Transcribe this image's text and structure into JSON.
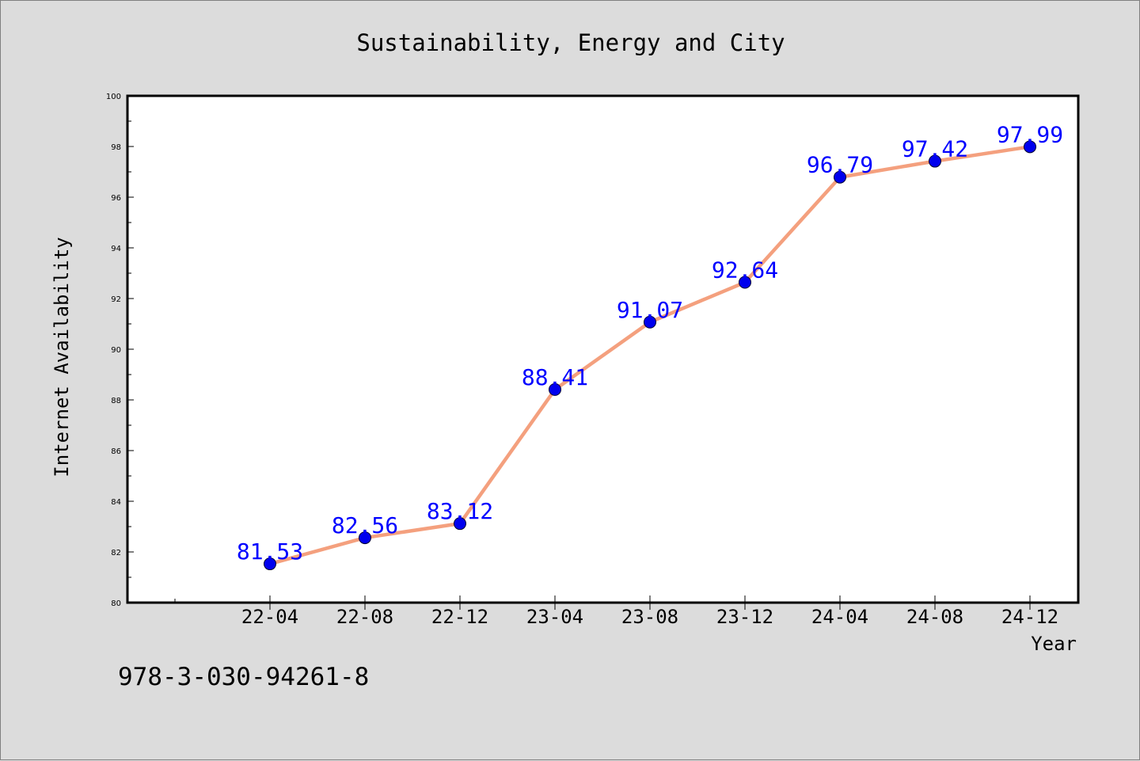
{
  "chart_data": {
    "type": "line",
    "title": "Sustainability, Energy and City",
    "xlabel": "Year",
    "ylabel": "Internet Availability",
    "categories": [
      "22-04",
      "22-08",
      "22-12",
      "23-04",
      "23-08",
      "23-12",
      "24-04",
      "24-08",
      "24-12"
    ],
    "series": [
      {
        "values": [
          81.53,
          82.56,
          83.12,
          88.41,
          91.07,
          92.64,
          96.79,
          97.42,
          97.99
        ],
        "line_color": "#f4a07e",
        "marker_color": "#0000ee"
      }
    ],
    "data_labels": [
      "81.53",
      "82.56",
      "83.12",
      "88.41",
      "91.07",
      "92.64",
      "96.79",
      "97.42",
      "97.99"
    ],
    "ylim": [
      80,
      100
    ],
    "yticks": [
      "80",
      "82",
      "84",
      "86",
      "88",
      "90",
      "92",
      "94",
      "96",
      "98",
      "100"
    ],
    "grid": false,
    "legend": "none",
    "label_color": "#0000ff"
  },
  "annotation": {
    "text": "978-3-030-94261-8"
  }
}
